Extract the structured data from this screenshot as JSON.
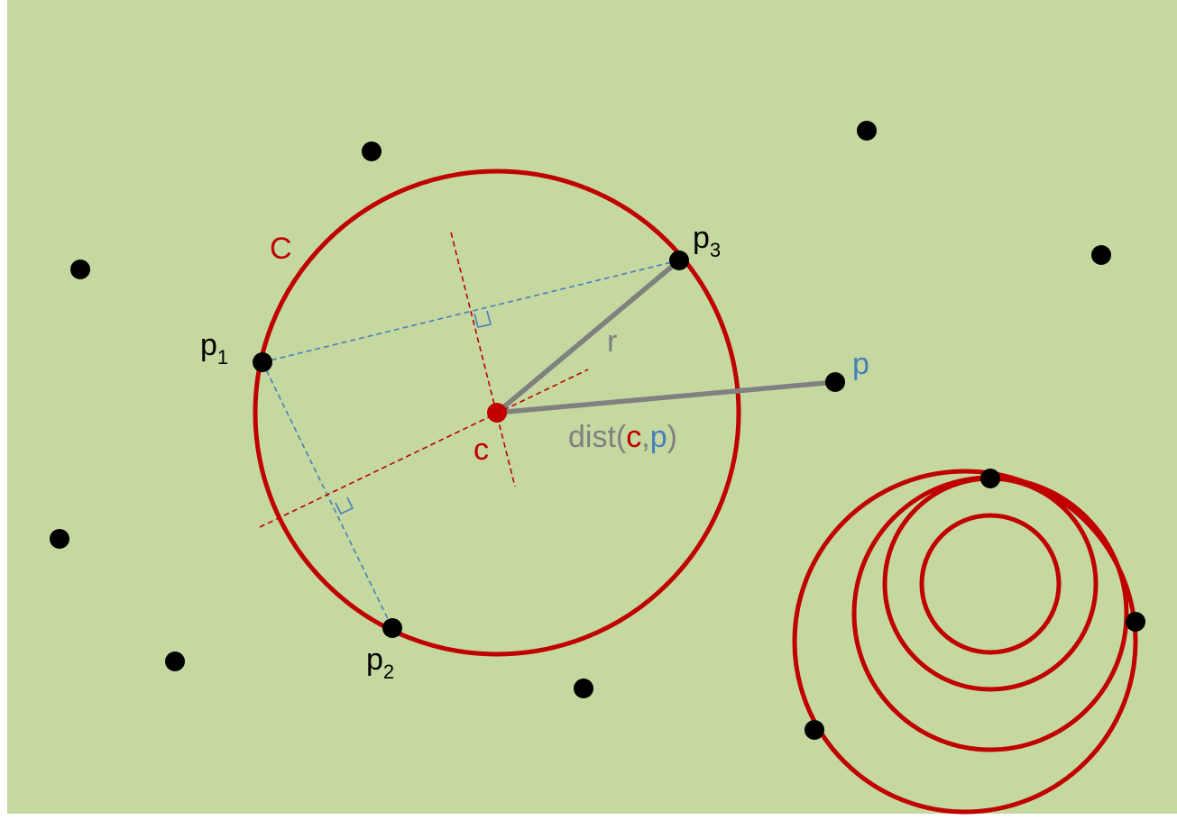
{
  "colors": {
    "background": "#c5d8a0",
    "circle": "#c00000",
    "point": "#000000",
    "gray": "#808080",
    "blue": "#4a7ebb",
    "red_text": "#c00000",
    "black_text": "#000000"
  },
  "labels": {
    "circle_name": "C",
    "p1_base": "p",
    "p1_sub": "1",
    "p2_base": "p",
    "p2_sub": "2",
    "p3_base": "p",
    "p3_sub": "3",
    "radius": "r",
    "point_p": "p",
    "center": "c",
    "dist_prefix": "dist(",
    "dist_c": "c",
    "dist_comma": ",",
    "dist_p": "p",
    "dist_suffix": ")"
  }
}
